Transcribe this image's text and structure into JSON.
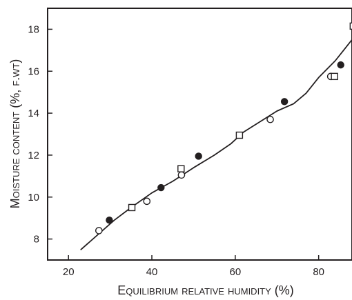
{
  "chart_data": {
    "type": "scatter",
    "title": "",
    "xlabel": "Equilibrium relative humidity (%)",
    "ylabel": "Moisture content (%, f.wt)",
    "xlim": [
      15,
      88
    ],
    "ylim": [
      7,
      19
    ],
    "xticks": [
      20,
      40,
      60,
      80
    ],
    "yticks": [
      8,
      10,
      12,
      14,
      16,
      18
    ],
    "grid": false,
    "legend": "none",
    "series": [
      {
        "marker": "filled-circle",
        "points": [
          {
            "x": 29.8,
            "y": 8.9
          },
          {
            "x": 42.2,
            "y": 10.45
          },
          {
            "x": 51.2,
            "y": 11.95
          },
          {
            "x": 71.8,
            "y": 14.55
          },
          {
            "x": 85.3,
            "y": 16.3
          }
        ]
      },
      {
        "marker": "open-circle",
        "points": [
          {
            "x": 27.3,
            "y": 8.4
          },
          {
            "x": 38.8,
            "y": 9.8
          },
          {
            "x": 47.1,
            "y": 11.05
          },
          {
            "x": 68.4,
            "y": 13.7
          },
          {
            "x": 82.9,
            "y": 15.75
          }
        ]
      },
      {
        "marker": "open-square",
        "points": [
          {
            "x": 35.2,
            "y": 9.5
          },
          {
            "x": 47.0,
            "y": 11.35
          },
          {
            "x": 61.0,
            "y": 12.95
          },
          {
            "x": 83.8,
            "y": 15.75
          },
          {
            "x": 88.3,
            "y": 18.15
          }
        ]
      },
      {
        "marker": "line",
        "points": [
          {
            "x": 23.0,
            "y": 7.5
          },
          {
            "x": 27.0,
            "y": 8.2
          },
          {
            "x": 31.0,
            "y": 8.9
          },
          {
            "x": 35.0,
            "y": 9.5
          },
          {
            "x": 40.0,
            "y": 10.2
          },
          {
            "x": 45.0,
            "y": 10.75
          },
          {
            "x": 50.0,
            "y": 11.4
          },
          {
            "x": 55.0,
            "y": 12.0
          },
          {
            "x": 59.0,
            "y": 12.55
          },
          {
            "x": 62.0,
            "y": 13.1
          },
          {
            "x": 66.0,
            "y": 13.6
          },
          {
            "x": 70.0,
            "y": 14.1
          },
          {
            "x": 74.0,
            "y": 14.45
          },
          {
            "x": 77.0,
            "y": 14.95
          },
          {
            "x": 80.0,
            "y": 15.7
          },
          {
            "x": 84.0,
            "y": 16.5
          },
          {
            "x": 86.0,
            "y": 17.0
          },
          {
            "x": 88.0,
            "y": 17.5
          }
        ]
      }
    ]
  }
}
